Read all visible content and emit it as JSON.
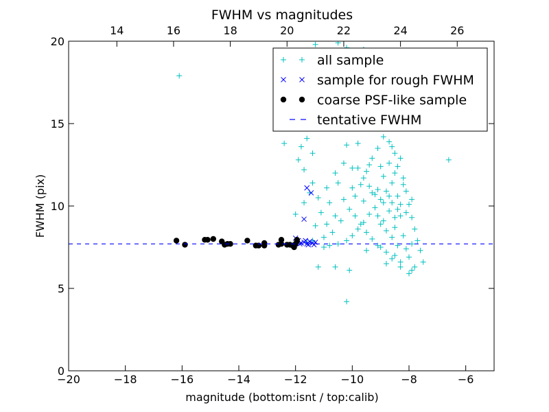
{
  "chart_data": {
    "type": "scatter",
    "title": "FWHM vs magnitudes",
    "xlabel": "magnitude (bottom:isnt / top:calib)",
    "ylabel": "FWHM (pix)",
    "xlim": [
      -20,
      -5
    ],
    "ylim": [
      0,
      20
    ],
    "x_ticks": [
      -20,
      -18,
      -16,
      -14,
      -12,
      -10,
      -8,
      -6
    ],
    "x_tick_labels": [
      "−20",
      "−18",
      "−16",
      "−14",
      "−12",
      "−10",
      "−8",
      "−6"
    ],
    "y_ticks": [
      0,
      5,
      10,
      15,
      20
    ],
    "y_tick_labels": [
      "0",
      "5",
      "10",
      "15",
      "20"
    ],
    "top_axis": {
      "offset": 32.3,
      "ticks": [
        14,
        16,
        18,
        20,
        22,
        24,
        26
      ],
      "tick_labels": [
        "14",
        "16",
        "18",
        "20",
        "22",
        "24",
        "26"
      ]
    },
    "grid": false,
    "legend_position": "top-right",
    "series": [
      {
        "name": "all sample",
        "marker": "plus",
        "color": "#00BFBF",
        "points": [
          [
            -16.1,
            17.9
          ],
          [
            -6.6,
            12.8
          ],
          [
            -10.5,
            19.9
          ],
          [
            -10.2,
            19.6
          ],
          [
            -10.7,
            19.3
          ],
          [
            -11.3,
            19.8
          ],
          [
            -10.1,
            19.0
          ],
          [
            -10.3,
            18.6
          ],
          [
            -10.0,
            18.3
          ],
          [
            -9.8,
            18.8
          ],
          [
            -9.6,
            19.5
          ],
          [
            -9.3,
            19.0
          ],
          [
            -9.1,
            18.5
          ],
          [
            -8.9,
            18.2
          ],
          [
            -8.7,
            17.8
          ],
          [
            -10.9,
            18.3
          ],
          [
            -11.6,
            17.8
          ],
          [
            -11.0,
            17.3
          ],
          [
            -10.4,
            16.8
          ],
          [
            -9.9,
            17.1
          ],
          [
            -9.4,
            16.6
          ],
          [
            -9.2,
            17.2
          ],
          [
            -8.8,
            16.3
          ],
          [
            -8.5,
            16.9
          ],
          [
            -8.3,
            15.8
          ],
          [
            -8.9,
            15.2
          ],
          [
            -9.6,
            15.6
          ],
          [
            -10.3,
            15.9
          ],
          [
            -12.3,
            16.8
          ],
          [
            -12.0,
            15.5
          ],
          [
            -11.6,
            14.1
          ],
          [
            -12.4,
            13.8
          ],
          [
            -11.8,
            13.6
          ],
          [
            -11.9,
            12.8
          ],
          [
            -11.4,
            13.2
          ],
          [
            -11.7,
            12.2
          ],
          [
            -11.4,
            11.4
          ],
          [
            -11.2,
            10.5
          ],
          [
            -10.9,
            11.1
          ],
          [
            -10.6,
            12.0
          ],
          [
            -10.3,
            12.6
          ],
          [
            -10.2,
            13.7
          ],
          [
            -9.8,
            13.8
          ],
          [
            -10.0,
            12.3
          ],
          [
            -10.5,
            11.4
          ],
          [
            -10.8,
            10.2
          ],
          [
            -11.1,
            9.6
          ],
          [
            -11.3,
            8.8
          ],
          [
            -11.0,
            8.1
          ],
          [
            -10.7,
            8.4
          ],
          [
            -10.4,
            9.1
          ],
          [
            -10.1,
            9.8
          ],
          [
            -9.9,
            10.6
          ],
          [
            -9.7,
            11.3
          ],
          [
            -9.5,
            12.1
          ],
          [
            -9.3,
            12.9
          ],
          [
            -9.1,
            13.5
          ],
          [
            -8.9,
            14.2
          ],
          [
            -8.7,
            13.9
          ],
          [
            -8.5,
            13.2
          ],
          [
            -8.4,
            12.4
          ],
          [
            -8.2,
            11.7
          ],
          [
            -8.1,
            10.9
          ],
          [
            -8.0,
            10.1
          ],
          [
            -7.9,
            9.3
          ],
          [
            -7.8,
            8.6
          ],
          [
            -7.7,
            7.9
          ],
          [
            -7.6,
            7.3
          ],
          [
            -7.5,
            6.6
          ],
          [
            -7.9,
            6.1
          ],
          [
            -8.0,
            5.9
          ],
          [
            -8.3,
            6.3
          ],
          [
            -8.6,
            6.8
          ],
          [
            -8.8,
            7.2
          ],
          [
            -9.1,
            7.6
          ],
          [
            -9.3,
            8.0
          ],
          [
            -9.5,
            8.4
          ],
          [
            -9.7,
            8.9
          ],
          [
            -9.9,
            9.4
          ],
          [
            -9.2,
            9.9
          ],
          [
            -9.0,
            10.4
          ],
          [
            -8.8,
            10.9
          ],
          [
            -8.6,
            11.4
          ],
          [
            -8.4,
            10.6
          ],
          [
            -8.7,
            9.7
          ],
          [
            -8.9,
            9.1
          ],
          [
            -8.5,
            8.7
          ],
          [
            -8.3,
            9.4
          ],
          [
            -8.2,
            8.2
          ],
          [
            -8.4,
            7.6
          ],
          [
            -8.6,
            8.1
          ],
          [
            -8.8,
            8.5
          ],
          [
            -9.0,
            8.9
          ],
          [
            -9.2,
            10.7
          ],
          [
            -9.4,
            11.2
          ],
          [
            -9.6,
            10.3
          ],
          [
            -8.1,
            7.4
          ],
          [
            -8.0,
            6.9
          ],
          [
            -7.9,
            7.7
          ],
          [
            -8.7,
            12.6
          ],
          [
            -8.9,
            11.8
          ],
          [
            -9.1,
            11.0
          ],
          [
            -8.6,
            10.2
          ],
          [
            -8.4,
            9.8
          ],
          [
            -8.2,
            11.3
          ],
          [
            -8.5,
            12.0
          ],
          [
            -8.3,
            12.9
          ],
          [
            -8.6,
            13.6
          ],
          [
            -9.0,
            12.4
          ],
          [
            -9.4,
            9.5
          ],
          [
            -9.6,
            9.0
          ],
          [
            -9.8,
            8.6
          ],
          [
            -10.0,
            8.2
          ],
          [
            -10.2,
            7.9
          ],
          [
            -10.5,
            7.7
          ],
          [
            -10.8,
            7.6
          ],
          [
            -11.0,
            7.5
          ],
          [
            -10.6,
            6.3
          ],
          [
            -11.2,
            6.3
          ],
          [
            -10.1,
            6.1
          ],
          [
            -10.2,
            4.2
          ],
          [
            -11.6,
            7.8
          ],
          [
            -11.4,
            7.9
          ],
          [
            -9.5,
            7.3
          ],
          [
            -9.0,
            7.5
          ],
          [
            -8.8,
            6.5
          ],
          [
            -8.5,
            7.0
          ],
          [
            -8.3,
            6.6
          ],
          [
            -7.8,
            6.3
          ],
          [
            -8.9,
            10.2
          ],
          [
            -8.7,
            10.6
          ],
          [
            -8.5,
            9.3
          ],
          [
            -8.3,
            10.1
          ],
          [
            -8.1,
            9.6
          ],
          [
            -7.9,
            10.4
          ],
          [
            -9.3,
            10.8
          ],
          [
            -9.1,
            9.4
          ],
          [
            -9.4,
            12.5
          ],
          [
            -9.6,
            11.7
          ],
          [
            -9.8,
            12.3
          ],
          [
            -10.0,
            11.1
          ],
          [
            -10.3,
            10.4
          ],
          [
            -10.6,
            9.4
          ],
          [
            -10.9,
            8.9
          ],
          [
            -11.5,
            10.8
          ],
          [
            -11.7,
            10.2
          ],
          [
            -12.0,
            9.5
          ]
        ]
      },
      {
        "name": "sample for rough FWHM",
        "marker": "x",
        "color": "#0000FF",
        "points": [
          [
            -11.6,
            11.1
          ],
          [
            -11.45,
            10.8
          ],
          [
            -11.7,
            9.2
          ],
          [
            -12.0,
            8.05
          ],
          [
            -11.9,
            7.9
          ],
          [
            -11.8,
            7.75
          ],
          [
            -11.7,
            7.8
          ],
          [
            -11.6,
            7.7
          ],
          [
            -11.5,
            7.85
          ],
          [
            -11.4,
            7.75
          ],
          [
            -11.3,
            7.8
          ],
          [
            -11.55,
            7.65
          ],
          [
            -11.65,
            7.9
          ],
          [
            -11.85,
            7.7
          ],
          [
            -11.35,
            7.65
          ]
        ]
      },
      {
        "name": "coarse PSF-like sample",
        "marker": "circle",
        "color": "#000000",
        "points": [
          [
            -16.2,
            7.9
          ],
          [
            -15.9,
            7.65
          ],
          [
            -15.2,
            7.95
          ],
          [
            -15.1,
            7.95
          ],
          [
            -14.9,
            8.0
          ],
          [
            -14.6,
            7.85
          ],
          [
            -14.5,
            7.65
          ],
          [
            -14.4,
            7.7
          ],
          [
            -14.3,
            7.7
          ],
          [
            -13.7,
            7.9
          ],
          [
            -13.4,
            7.6
          ],
          [
            -13.3,
            7.6
          ],
          [
            -13.1,
            7.75
          ],
          [
            -13.1,
            7.6
          ],
          [
            -12.6,
            7.65
          ],
          [
            -12.5,
            7.95
          ],
          [
            -12.5,
            7.7
          ],
          [
            -12.3,
            7.65
          ],
          [
            -12.2,
            7.65
          ],
          [
            -12.1,
            7.6
          ],
          [
            -12.05,
            7.5
          ],
          [
            -12.0,
            7.7
          ],
          [
            -11.95,
            7.85
          ],
          [
            -11.95,
            7.95
          ]
        ]
      },
      {
        "name": "tentative FWHM",
        "marker": "dashed-line",
        "color": "#0000FF",
        "y": 7.7
      }
    ]
  }
}
